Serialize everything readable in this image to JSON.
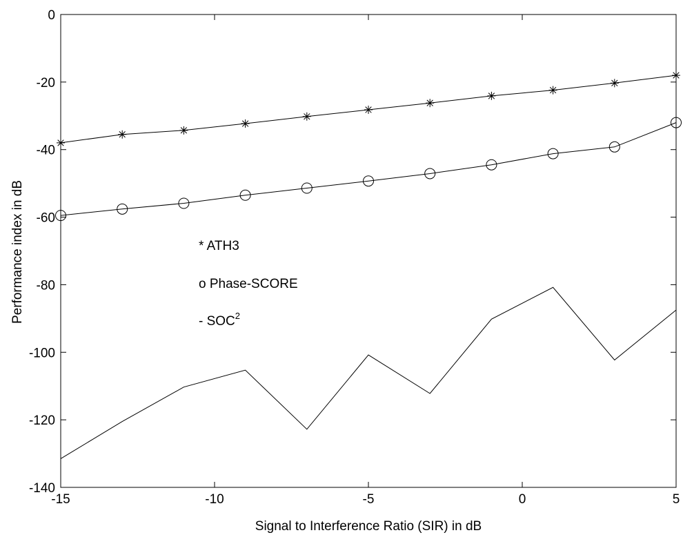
{
  "chart_data": {
    "type": "line",
    "xlabel": "Signal to Interference Ratio (SIR) in dB",
    "ylabel": "Performance index in dB",
    "xlim": [
      -15,
      5
    ],
    "ylim": [
      -140,
      0
    ],
    "xticks": [
      -15,
      -10,
      -5,
      0,
      5
    ],
    "yticks": [
      0,
      -20,
      -40,
      -60,
      -80,
      -100,
      -120,
      -140
    ],
    "x": [
      -15,
      -13,
      -11,
      -9,
      -7,
      -5,
      -3,
      -1,
      1,
      3,
      5
    ],
    "series": [
      {
        "key": "ath3",
        "marker": "star",
        "values": [
          -38,
          -35.5,
          -34.3,
          -32.3,
          -30.2,
          -28.2,
          -26.2,
          -24.1,
          -22.4,
          -20.3,
          -18
        ]
      },
      {
        "key": "phase_score",
        "marker": "circle",
        "values": [
          -59.5,
          -57.6,
          -55.9,
          -53.5,
          -51.4,
          -49.3,
          -47.1,
          -44.5,
          -41.2,
          -39.2,
          -32
        ]
      },
      {
        "key": "soc2",
        "marker": "none",
        "values": [
          -131.5,
          -120.5,
          -110.3,
          -105.3,
          -122.8,
          -100.8,
          -112.2,
          -90.2,
          -80.8,
          -102.3,
          -87.5
        ]
      }
    ],
    "legend": [
      {
        "prefix": "* ",
        "text": "ATH3"
      },
      {
        "prefix": "o ",
        "text": "Phase-SCORE"
      },
      {
        "prefix": "- ",
        "text": "SOC",
        "sup": "2"
      }
    ],
    "grid": false,
    "legend_position": "center-left"
  }
}
